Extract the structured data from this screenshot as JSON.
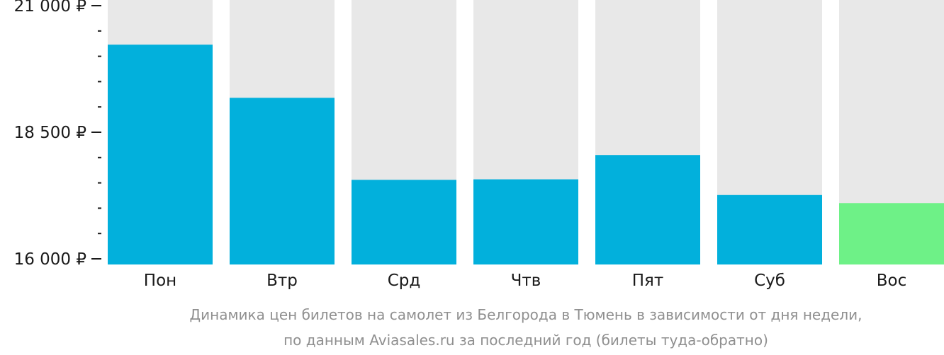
{
  "chart_data": {
    "type": "bar",
    "categories": [
      "Пон",
      "Втр",
      "Срд",
      "Чтв",
      "Пят",
      "Суб",
      "Вос"
    ],
    "values": [
      20230,
      19180,
      17560,
      17570,
      18050,
      17260,
      17100
    ],
    "ylim": [
      16000,
      21000
    ],
    "y_ticks": [
      {
        "value": 16000,
        "label": "16 000 ₽"
      },
      {
        "value": 18500,
        "label": "18 500 ₽"
      },
      {
        "value": 21000,
        "label": "21 000 ₽"
      }
    ],
    "y_minor_step": 500,
    "highlight_index": 6,
    "colors": {
      "bar": "#02b0dc",
      "highlight": "#6ef187",
      "background_column": "#e8e8e8",
      "axis": "#1a1a1a",
      "caption": "#8f8f8f"
    },
    "title": "",
    "xlabel": "",
    "ylabel": "",
    "grid": false,
    "legend": "none"
  },
  "caption": {
    "line1": "Динамика цен билетов на самолет из Белгорода в Тюмень в зависимости от дня недели,",
    "line2": "по данным Aviasales.ru за последний год (билеты туда-обратно)"
  }
}
